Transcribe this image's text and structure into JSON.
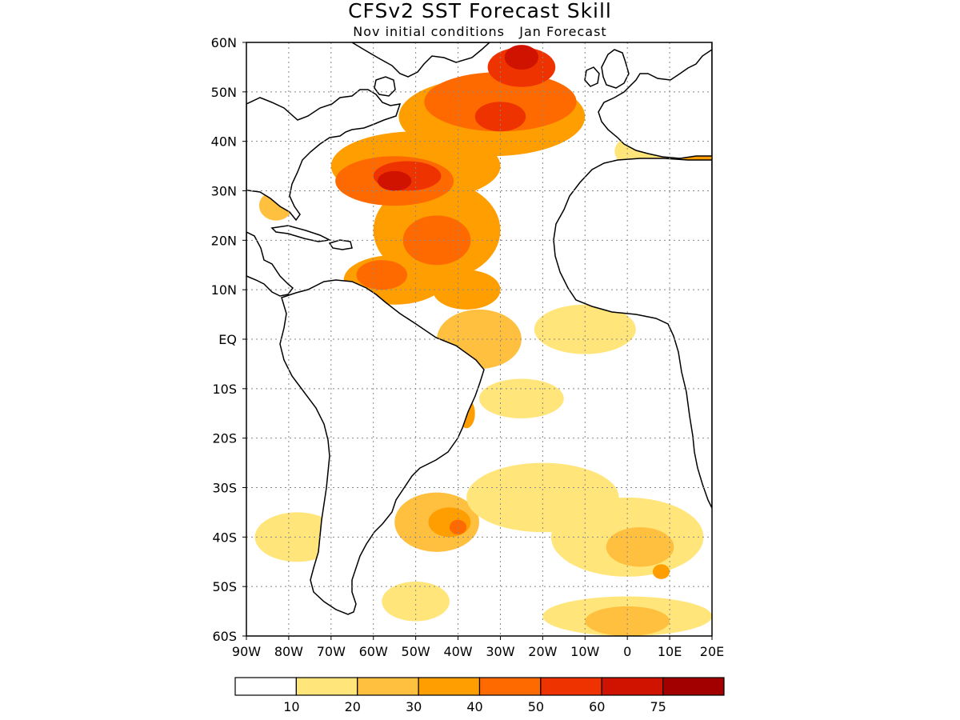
{
  "title": "CFSv2 SST Forecast Skill",
  "subtitle": "Nov initial conditions   Jan Forecast",
  "lat_labels": [
    "60N",
    "50N",
    "40N",
    "30N",
    "20N",
    "10N",
    "EQ",
    "10S",
    "20S",
    "30S",
    "40S",
    "50S",
    "60S"
  ],
  "lon_labels": [
    "90W",
    "80W",
    "70W",
    "60W",
    "50W",
    "40W",
    "30W",
    "20W",
    "10W",
    "0",
    "10E",
    "20E"
  ],
  "extent": {
    "lon": [
      -90,
      20
    ],
    "lat": [
      -60,
      60
    ]
  },
  "grid": true,
  "colorbar": {
    "colors": [
      "#ffffff",
      "#ffe57a",
      "#ffc040",
      "#ff9e00",
      "#ff6a00",
      "#ee3300",
      "#d01200",
      "#a20000"
    ],
    "labels": [
      "10",
      "20",
      "30",
      "40",
      "50",
      "60",
      "75"
    ]
  },
  "skill_regions": [
    {
      "lon": -32,
      "lat": 45,
      "rx": 22,
      "ry": 8,
      "level": 3
    },
    {
      "lon": -50,
      "lat": 35,
      "rx": 20,
      "ry": 7,
      "level": 3
    },
    {
      "lon": -45,
      "lat": 22,
      "rx": 15,
      "ry": 10,
      "level": 3
    },
    {
      "lon": -55,
      "lat": 12,
      "rx": 12,
      "ry": 5,
      "level": 3
    },
    {
      "lon": -38,
      "lat": 10,
      "rx": 8,
      "ry": 4,
      "level": 3
    },
    {
      "lon": -30,
      "lat": 48,
      "rx": 18,
      "ry": 6,
      "level": 4
    },
    {
      "lon": -55,
      "lat": 32,
      "rx": 14,
      "ry": 5,
      "level": 4
    },
    {
      "lon": -45,
      "lat": 20,
      "rx": 8,
      "ry": 5,
      "level": 4
    },
    {
      "lon": -58,
      "lat": 13,
      "rx": 6,
      "ry": 3,
      "level": 4
    },
    {
      "lon": -25,
      "lat": 55,
      "rx": 8,
      "ry": 4,
      "level": 5
    },
    {
      "lon": -52,
      "lat": 33,
      "rx": 8,
      "ry": 3,
      "level": 5
    },
    {
      "lon": -30,
      "lat": 45,
      "rx": 6,
      "ry": 3,
      "level": 5
    },
    {
      "lon": -25,
      "lat": 57,
      "rx": 4,
      "ry": 2.5,
      "level": 6
    },
    {
      "lon": -55,
      "lat": 32,
      "rx": 4,
      "ry": 2,
      "level": 6
    },
    {
      "lon": -10,
      "lat": 2,
      "rx": 12,
      "ry": 5,
      "level": 1
    },
    {
      "lon": -35,
      "lat": 0,
      "rx": 10,
      "ry": 6,
      "level": 2
    },
    {
      "lon": -25,
      "lat": -12,
      "rx": 10,
      "ry": 4,
      "level": 1
    },
    {
      "lon": -38,
      "lat": -15,
      "rx": 2,
      "ry": 3,
      "level": 3
    },
    {
      "lon": -45,
      "lat": -37,
      "rx": 10,
      "ry": 6,
      "level": 2
    },
    {
      "lon": -42,
      "lat": -37,
      "rx": 5,
      "ry": 3,
      "level": 3
    },
    {
      "lon": -40,
      "lat": -38,
      "rx": 2,
      "ry": 1.5,
      "level": 4
    },
    {
      "lon": -20,
      "lat": -32,
      "rx": 18,
      "ry": 7,
      "level": 1
    },
    {
      "lon": 0,
      "lat": -40,
      "rx": 18,
      "ry": 8,
      "level": 1
    },
    {
      "lon": 3,
      "lat": -42,
      "rx": 8,
      "ry": 4,
      "level": 2
    },
    {
      "lon": 8,
      "lat": -47,
      "rx": 2,
      "ry": 1.5,
      "level": 3
    },
    {
      "lon": 0,
      "lat": -56,
      "rx": 20,
      "ry": 4,
      "level": 1
    },
    {
      "lon": 0,
      "lat": -57,
      "rx": 10,
      "ry": 3,
      "level": 2
    },
    {
      "lon": -78,
      "lat": -40,
      "rx": 10,
      "ry": 5,
      "level": 1
    },
    {
      "lon": -50,
      "lat": -53,
      "rx": 8,
      "ry": 4,
      "level": 1
    },
    {
      "lon": -83,
      "lat": 27,
      "rx": 4,
      "ry": 3,
      "level": 2
    },
    {
      "lon": 5,
      "lat": 38,
      "rx": 8,
      "ry": 4,
      "level": 1
    },
    {
      "lon": 17,
      "lat": 37,
      "rx": 4,
      "ry": 4,
      "level": 3
    }
  ]
}
